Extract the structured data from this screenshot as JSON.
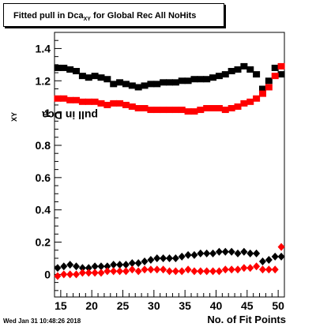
{
  "title": {
    "prefix": "Fitted pull in Dca",
    "sub": "XY",
    "suffix": " for Global Rec All NoHits"
  },
  "timestamp": "Wed Jan 31 10:48:26 2018",
  "chart_data": {
    "type": "scatter",
    "xlabel": "No. of Fit Points",
    "ylabel": {
      "prefix": "pull in Dca",
      "sub": "XY"
    },
    "xlim": [
      14,
      51
    ],
    "ylim": [
      -0.14,
      1.5
    ],
    "xticks": [
      15,
      20,
      25,
      30,
      35,
      40,
      45,
      50
    ],
    "yticks": [
      0,
      0.2,
      0.4,
      0.6,
      0.8,
      1,
      1.2,
      1.4
    ],
    "ytick_labels": [
      "0",
      "0.2",
      "0.4",
      "0.6",
      "0.8",
      "1",
      "1.2",
      "1.4"
    ],
    "x": [
      14.5,
      15.5,
      16.5,
      17.5,
      18.5,
      19.5,
      20.5,
      21.5,
      22.5,
      23.5,
      24.5,
      25.5,
      26.5,
      27.5,
      28.5,
      29.5,
      30.5,
      31.5,
      32.5,
      33.5,
      34.5,
      35.5,
      36.5,
      37.5,
      38.5,
      39.5,
      40.5,
      41.5,
      42.5,
      43.5,
      44.5,
      45.5,
      46.5,
      47.5,
      48.5,
      49.5,
      50.5
    ],
    "series": [
      {
        "color": "#000000",
        "marker": "square",
        "values": [
          1.28,
          1.28,
          1.27,
          1.26,
          1.23,
          1.22,
          1.23,
          1.22,
          1.21,
          1.18,
          1.19,
          1.18,
          1.17,
          1.16,
          1.17,
          1.18,
          1.18,
          1.19,
          1.19,
          1.19,
          1.2,
          1.2,
          1.21,
          1.21,
          1.21,
          1.22,
          1.23,
          1.24,
          1.26,
          1.27,
          1.29,
          1.27,
          1.24,
          1.15,
          1.2,
          1.28,
          1.24
        ]
      },
      {
        "color": "#ff0000",
        "marker": "square",
        "values": [
          1.09,
          1.09,
          1.08,
          1.08,
          1.07,
          1.07,
          1.07,
          1.06,
          1.05,
          1.06,
          1.06,
          1.05,
          1.04,
          1.03,
          1.03,
          1.02,
          1.02,
          1.02,
          1.02,
          1.02,
          1.02,
          1.01,
          1.01,
          1.02,
          1.03,
          1.03,
          1.03,
          1.02,
          1.03,
          1.04,
          1.06,
          1.07,
          1.09,
          1.12,
          1.16,
          1.23,
          1.29
        ]
      },
      {
        "color": "#000000",
        "marker": "diamond",
        "values": [
          0.04,
          0.05,
          0.06,
          0.05,
          0.04,
          0.04,
          0.05,
          0.05,
          0.05,
          0.06,
          0.06,
          0.06,
          0.07,
          0.07,
          0.08,
          0.09,
          0.1,
          0.1,
          0.1,
          0.1,
          0.11,
          0.12,
          0.12,
          0.13,
          0.13,
          0.13,
          0.14,
          0.14,
          0.14,
          0.13,
          0.14,
          0.13,
          0.13,
          0.08,
          0.09,
          0.11,
          0.11
        ]
      },
      {
        "color": "#ff0000",
        "marker": "diamond",
        "values": [
          -0.01,
          0.0,
          0.0,
          0.0,
          0.01,
          0.01,
          0.01,
          0.01,
          0.02,
          0.02,
          0.02,
          0.02,
          0.03,
          0.02,
          0.03,
          0.03,
          0.03,
          0.03,
          0.02,
          0.02,
          0.02,
          0.03,
          0.02,
          0.02,
          0.02,
          0.02,
          0.02,
          0.03,
          0.03,
          0.03,
          0.04,
          0.04,
          0.05,
          0.03,
          0.03,
          0.03,
          0.17
        ]
      }
    ]
  }
}
